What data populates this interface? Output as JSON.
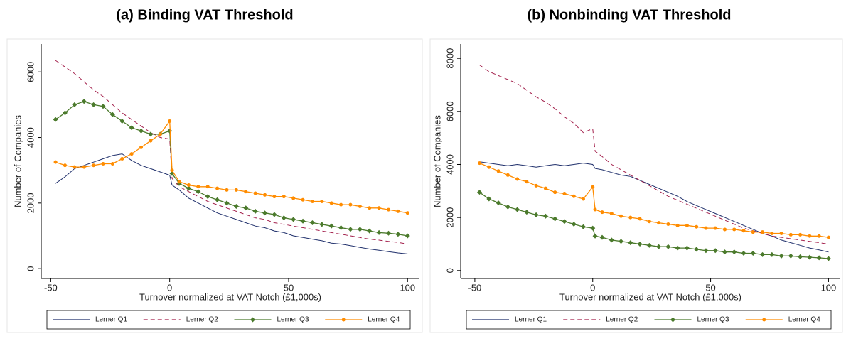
{
  "chart_data": [
    {
      "type": "line",
      "title": "(a) Binding VAT Threshold",
      "x_label": "Turnover normalized at VAT Notch (£1,000s)",
      "y_label": "Number of Companies",
      "x": [
        -48,
        -44,
        -40,
        -36,
        -32,
        -28,
        -24,
        -20,
        -16,
        -12,
        -8,
        -4,
        0,
        1,
        4,
        8,
        12,
        16,
        20,
        24,
        28,
        32,
        36,
        40,
        44,
        48,
        52,
        56,
        60,
        64,
        68,
        72,
        76,
        80,
        84,
        88,
        92,
        96,
        100
      ],
      "xlim": [
        -54,
        105
      ],
      "xticks": [
        -50,
        0,
        50,
        100
      ],
      "ylim": [
        -300,
        6850
      ],
      "yticks": [
        0,
        2000,
        4000,
        6000
      ],
      "series": [
        {
          "name": "Lerner Q1",
          "color": "#1f2f6b",
          "style": "solid",
          "marker": "none",
          "values": [
            2600,
            2800,
            3050,
            3150,
            3250,
            3350,
            3450,
            3500,
            3300,
            3150,
            3050,
            2950,
            2850,
            2550,
            2400,
            2150,
            2000,
            1850,
            1700,
            1600,
            1500,
            1400,
            1300,
            1250,
            1150,
            1100,
            1000,
            950,
            900,
            850,
            780,
            750,
            700,
            650,
            600,
            560,
            520,
            480,
            450
          ]
        },
        {
          "name": "Lerner Q2",
          "color": "#a3204c",
          "style": "dashed",
          "marker": "none",
          "values": [
            6350,
            6150,
            5950,
            5700,
            5450,
            5250,
            5000,
            4750,
            4550,
            4350,
            4150,
            4000,
            3950,
            2750,
            2500,
            2350,
            2200,
            2050,
            1950,
            1850,
            1750,
            1650,
            1550,
            1500,
            1400,
            1350,
            1300,
            1250,
            1200,
            1150,
            1100,
            1050,
            1000,
            950,
            900,
            870,
            830,
            800,
            750
          ]
        },
        {
          "name": "Lerner Q3",
          "color": "#4b7a2c",
          "style": "solid",
          "marker": "diamond",
          "values": [
            4550,
            4750,
            5000,
            5100,
            5000,
            4950,
            4700,
            4500,
            4300,
            4200,
            4100,
            4100,
            4200,
            2900,
            2600,
            2450,
            2350,
            2200,
            2100,
            2000,
            1900,
            1850,
            1750,
            1700,
            1650,
            1550,
            1500,
            1450,
            1400,
            1350,
            1300,
            1250,
            1200,
            1200,
            1150,
            1100,
            1080,
            1050,
            1000
          ]
        },
        {
          "name": "Lerner Q4",
          "color": "#ff8c00",
          "style": "solid",
          "marker": "circle",
          "values": [
            3250,
            3150,
            3100,
            3100,
            3150,
            3200,
            3200,
            3350,
            3500,
            3700,
            3900,
            4100,
            4500,
            3000,
            2650,
            2550,
            2500,
            2500,
            2450,
            2400,
            2400,
            2350,
            2300,
            2250,
            2200,
            2200,
            2150,
            2100,
            2050,
            2050,
            2000,
            1950,
            1950,
            1900,
            1850,
            1850,
            1800,
            1750,
            1700
          ]
        }
      ]
    },
    {
      "type": "line",
      "title": "(b) Nonbinding VAT Threshold",
      "x_label": "Turnover normalized at VAT Notch (£1,000s)",
      "y_label": "Number of Companies",
      "x": [
        -48,
        -44,
        -40,
        -36,
        -32,
        -28,
        -24,
        -20,
        -16,
        -12,
        -8,
        -4,
        0,
        1,
        4,
        8,
        12,
        16,
        20,
        24,
        28,
        32,
        36,
        40,
        44,
        48,
        52,
        56,
        60,
        64,
        68,
        72,
        76,
        80,
        84,
        88,
        92,
        96,
        100
      ],
      "xlim": [
        -56,
        105
      ],
      "xticks": [
        -50,
        0,
        50,
        100
      ],
      "ylim": [
        -300,
        8540
      ],
      "yticks": [
        0,
        2000,
        4000,
        6000,
        8000
      ],
      "series": [
        {
          "name": "Lerner Q1",
          "color": "#1f2f6b",
          "style": "solid",
          "marker": "none",
          "values": [
            4100,
            4050,
            4000,
            3950,
            4000,
            3950,
            3900,
            3950,
            4000,
            3950,
            4000,
            4050,
            4000,
            3850,
            3800,
            3700,
            3600,
            3550,
            3400,
            3250,
            3100,
            2950,
            2800,
            2600,
            2450,
            2300,
            2150,
            2000,
            1850,
            1700,
            1550,
            1400,
            1300,
            1150,
            1050,
            950,
            850,
            780,
            700
          ]
        },
        {
          "name": "Lerner Q2",
          "color": "#a3204c",
          "style": "dashed",
          "marker": "none",
          "values": [
            7750,
            7500,
            7350,
            7200,
            7050,
            6800,
            6550,
            6350,
            6100,
            5800,
            5550,
            5200,
            5350,
            4500,
            4300,
            4000,
            3800,
            3600,
            3400,
            3200,
            3000,
            2800,
            2650,
            2500,
            2350,
            2200,
            2050,
            1900,
            1750,
            1600,
            1500,
            1400,
            1300,
            1250,
            1200,
            1150,
            1100,
            1050,
            1000
          ]
        },
        {
          "name": "Lerner Q3",
          "color": "#4b7a2c",
          "style": "solid",
          "marker": "diamond",
          "values": [
            2950,
            2700,
            2550,
            2400,
            2300,
            2200,
            2100,
            2050,
            1950,
            1850,
            1750,
            1650,
            1600,
            1300,
            1250,
            1150,
            1100,
            1050,
            1000,
            950,
            900,
            900,
            850,
            850,
            800,
            750,
            750,
            700,
            700,
            650,
            650,
            600,
            600,
            550,
            550,
            520,
            500,
            480,
            450
          ]
        },
        {
          "name": "Lerner Q4",
          "color": "#ff8c00",
          "style": "solid",
          "marker": "circle",
          "values": [
            4050,
            3900,
            3750,
            3600,
            3450,
            3350,
            3200,
            3100,
            2950,
            2900,
            2800,
            2700,
            3150,
            2300,
            2200,
            2150,
            2050,
            2000,
            1950,
            1850,
            1800,
            1750,
            1700,
            1700,
            1650,
            1600,
            1600,
            1550,
            1550,
            1500,
            1450,
            1450,
            1400,
            1400,
            1350,
            1350,
            1300,
            1300,
            1250
          ]
        }
      ]
    }
  ]
}
